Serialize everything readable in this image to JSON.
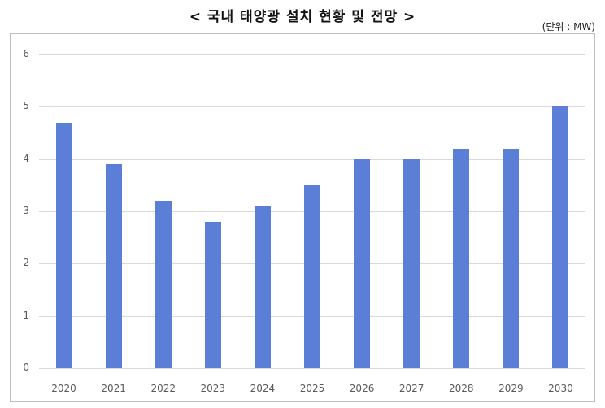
{
  "title": "< 국내 태양광 설치 현황 및 전망 >",
  "unit_label": "(단위 : MW)",
  "colors": {
    "bar": "#5b7fd6",
    "grid": "#d9d9d9",
    "axis_text": "#595959",
    "frame": "#bfbfbf"
  },
  "chart_data": {
    "type": "bar",
    "title": "< 국내 태양광 설치 현황 및 전망 >",
    "subtitle": "(단위 : MW)",
    "xlabel": "",
    "ylabel": "",
    "categories": [
      "2020",
      "2021",
      "2022",
      "2023",
      "2024",
      "2025",
      "2026",
      "2027",
      "2028",
      "2029",
      "2030"
    ],
    "values": [
      4.7,
      3.9,
      3.2,
      2.8,
      3.1,
      3.5,
      4.0,
      4.0,
      4.2,
      4.2,
      5.0
    ],
    "ylim": [
      0,
      6
    ],
    "yticks": [
      "0",
      "1",
      "2",
      "3",
      "4",
      "5",
      "6"
    ],
    "grid": true,
    "legend": null
  }
}
